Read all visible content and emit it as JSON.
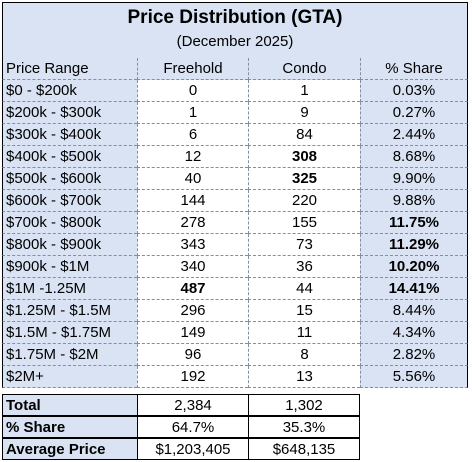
{
  "title": "Price Distribution (GTA)",
  "subtitle": "(December 2025)",
  "columns": [
    "Price Range",
    "Freehold",
    "Condo",
    "% Share"
  ],
  "rows": [
    {
      "range": "$0 - $200k",
      "freehold": "0",
      "condo": "1",
      "share": "0.03%"
    },
    {
      "range": "$200k - $300k",
      "freehold": "1",
      "condo": "9",
      "share": "0.27%"
    },
    {
      "range": "$300k - $400k",
      "freehold": "6",
      "condo": "84",
      "share": "2.44%"
    },
    {
      "range": "$400k - $500k",
      "freehold": "12",
      "condo": "308",
      "share": "8.68%"
    },
    {
      "range": "$500k - $600k",
      "freehold": "40",
      "condo": "325",
      "share": "9.90%"
    },
    {
      "range": "$600k - $700k",
      "freehold": "144",
      "condo": "220",
      "share": "9.88%"
    },
    {
      "range": "$700k - $800k",
      "freehold": "278",
      "condo": "155",
      "share": "11.75%"
    },
    {
      "range": "$800k - $900k",
      "freehold": "343",
      "condo": "73",
      "share": "11.29%"
    },
    {
      "range": "$900k - $1M",
      "freehold": "340",
      "condo": "36",
      "share": "10.20%"
    },
    {
      "range": "$1M -1.25M",
      "freehold": "487",
      "condo": "44",
      "share": "14.41%"
    },
    {
      "range": "$1.25M - $1.5M",
      "freehold": "296",
      "condo": "15",
      "share": "8.44%"
    },
    {
      "range": "$1.5M - $1.75M",
      "freehold": "149",
      "condo": "11",
      "share": "4.34%"
    },
    {
      "range": "$1.75M - $2M",
      "freehold": "96",
      "condo": "8",
      "share": "2.82%"
    },
    {
      "range": "$2M+",
      "freehold": "192",
      "condo": "13",
      "share": "5.56%"
    }
  ],
  "bold_cells": {
    "condo": [
      "308",
      "325"
    ],
    "freehold": [
      "487"
    ],
    "share": [
      "11.75%",
      "11.29%",
      "10.20%",
      "14.41%"
    ]
  },
  "footer": {
    "total": {
      "label": "Total",
      "freehold": "2,384",
      "condo": "1,302"
    },
    "share": {
      "label": "% Share",
      "freehold": "64.7%",
      "condo": "35.3%"
    },
    "average": {
      "label": "Average Price",
      "freehold": "$1,203,405",
      "condo": "$648,135"
    }
  },
  "colors": {
    "header_bg": "#dae3f3",
    "grid": "#7f8fa6",
    "border": "#000000"
  }
}
